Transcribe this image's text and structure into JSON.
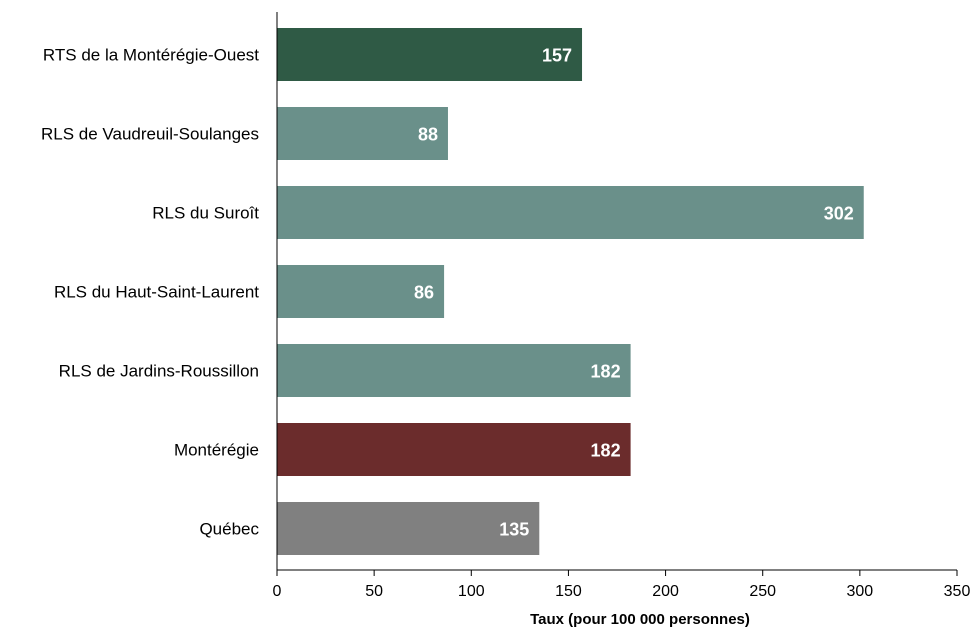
{
  "chart_data": {
    "type": "bar",
    "orientation": "horizontal",
    "categories": [
      "RTS de la Montérégie-Ouest",
      "RLS de Vaudreuil-Soulanges",
      "RLS du Suroît",
      "RLS du Haut-Saint-Laurent",
      "RLS de Jardins-Roussillon",
      "Montérégie",
      "Québec"
    ],
    "values": [
      157,
      88,
      302,
      86,
      182,
      182,
      135
    ],
    "value_labels": [
      "157",
      "88",
      "302",
      "86",
      "182",
      "182",
      "135"
    ],
    "colors": [
      "#2f5a45",
      "#6a908a",
      "#6a908a",
      "#6a908a",
      "#6a908a",
      "#6b2c2c",
      "#808080"
    ],
    "xlabel": "Taux (pour 100 000 personnes)",
    "ylabel": "",
    "title": "",
    "xlim": [
      0,
      350
    ],
    "xticks": [
      0,
      50,
      100,
      150,
      200,
      250,
      300,
      350
    ],
    "grid": false,
    "legend": "none"
  }
}
